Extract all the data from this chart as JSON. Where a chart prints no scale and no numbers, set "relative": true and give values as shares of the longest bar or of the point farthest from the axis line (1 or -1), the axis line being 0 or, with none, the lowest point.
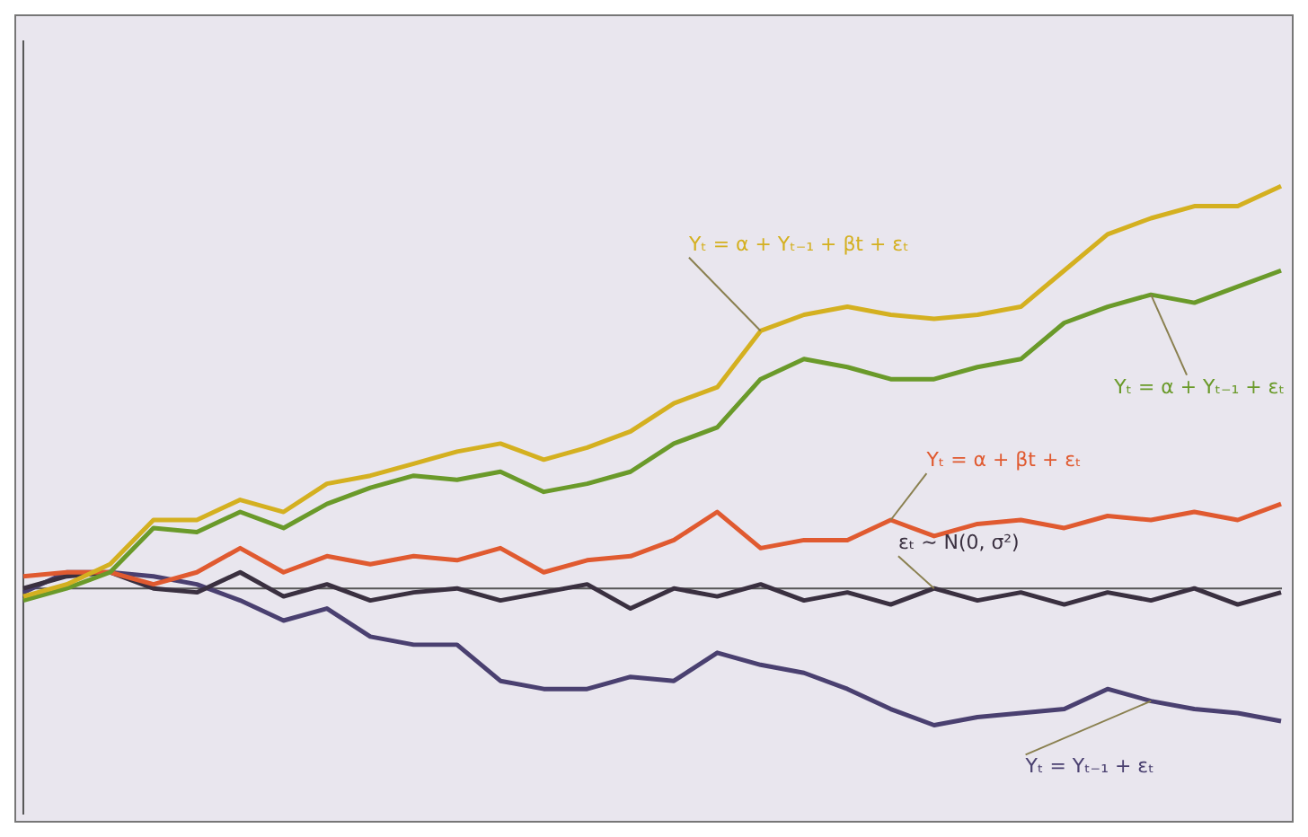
{
  "chart_data": {
    "type": "line",
    "relative": true,
    "legend": false,
    "grid": false,
    "marker": "none",
    "line_style": "solid",
    "categories": [
      null,
      null,
      null,
      null,
      null,
      null,
      null,
      null,
      null,
      null,
      null,
      null,
      null,
      null,
      null,
      null,
      null,
      null,
      null,
      null,
      null,
      null,
      null,
      null,
      null,
      null,
      null,
      null,
      null,
      null
    ],
    "series": [
      {
        "name": "Yₜ = α + Yₜ₋₁ + βt + εₜ",
        "color": "#d4b020",
        "values": [
          -0.02,
          0.01,
          0.06,
          0.17,
          0.17,
          0.22,
          0.19,
          0.26,
          0.28,
          0.31,
          0.34,
          0.36,
          0.32,
          0.35,
          0.39,
          0.46,
          0.5,
          0.64,
          0.68,
          0.7,
          0.68,
          0.67,
          0.68,
          0.7,
          0.79,
          0.88,
          0.92,
          0.95,
          0.95,
          1
        ]
      },
      {
        "name": "Yₜ = α + Yₜ₋₁ + εₜ",
        "color": "#6a9a2a",
        "values": [
          -0.03,
          0,
          0.04,
          0.15,
          0.14,
          0.19,
          0.15,
          0.21,
          0.25,
          0.28,
          0.27,
          0.29,
          0.24,
          0.26,
          0.29,
          0.36,
          0.4,
          0.52,
          0.57,
          0.55,
          0.52,
          0.52,
          0.55,
          0.57,
          0.66,
          0.7,
          0.73,
          0.71,
          0.75,
          0.79
        ]
      },
      {
        "name": "Yₜ = α + βt + εₜ",
        "color": "#e05a30",
        "values": [
          0.03,
          0.04,
          0.04,
          0.01,
          0.04,
          0.1,
          0.04,
          0.08,
          0.06,
          0.08,
          0.07,
          0.1,
          0.04,
          0.07,
          0.08,
          0.12,
          0.19,
          0.1,
          0.12,
          0.12,
          0.17,
          0.13,
          0.16,
          0.17,
          0.15,
          0.18,
          0.17,
          0.19,
          0.17,
          0.21
        ]
      },
      {
        "name": "εₜ ~ N(0, σ²)",
        "color": "#3a3040",
        "values": [
          0,
          0.03,
          0.04,
          0,
          -0.01,
          0.04,
          -0.02,
          0.01,
          -0.03,
          -0.01,
          0,
          -0.03,
          -0.01,
          0.01,
          -0.05,
          0,
          -0.02,
          0.01,
          -0.03,
          -0.01,
          -0.04,
          0,
          -0.03,
          -0.01,
          -0.04,
          -0.01,
          -0.03,
          0,
          -0.04,
          -0.01
        ]
      },
      {
        "name": "Yₜ = Yₜ₋₁ + εₜ",
        "color": "#4a4070",
        "values": [
          -0.01,
          0.04,
          0.04,
          0.03,
          0.01,
          -0.03,
          -0.08,
          -0.05,
          -0.12,
          -0.14,
          -0.14,
          -0.23,
          -0.25,
          -0.25,
          -0.22,
          -0.23,
          -0.16,
          -0.19,
          -0.21,
          -0.25,
          -0.3,
          -0.34,
          -0.32,
          -0.31,
          -0.3,
          -0.25,
          -0.28,
          -0.3,
          -0.31,
          -0.33
        ]
      }
    ]
  }
}
